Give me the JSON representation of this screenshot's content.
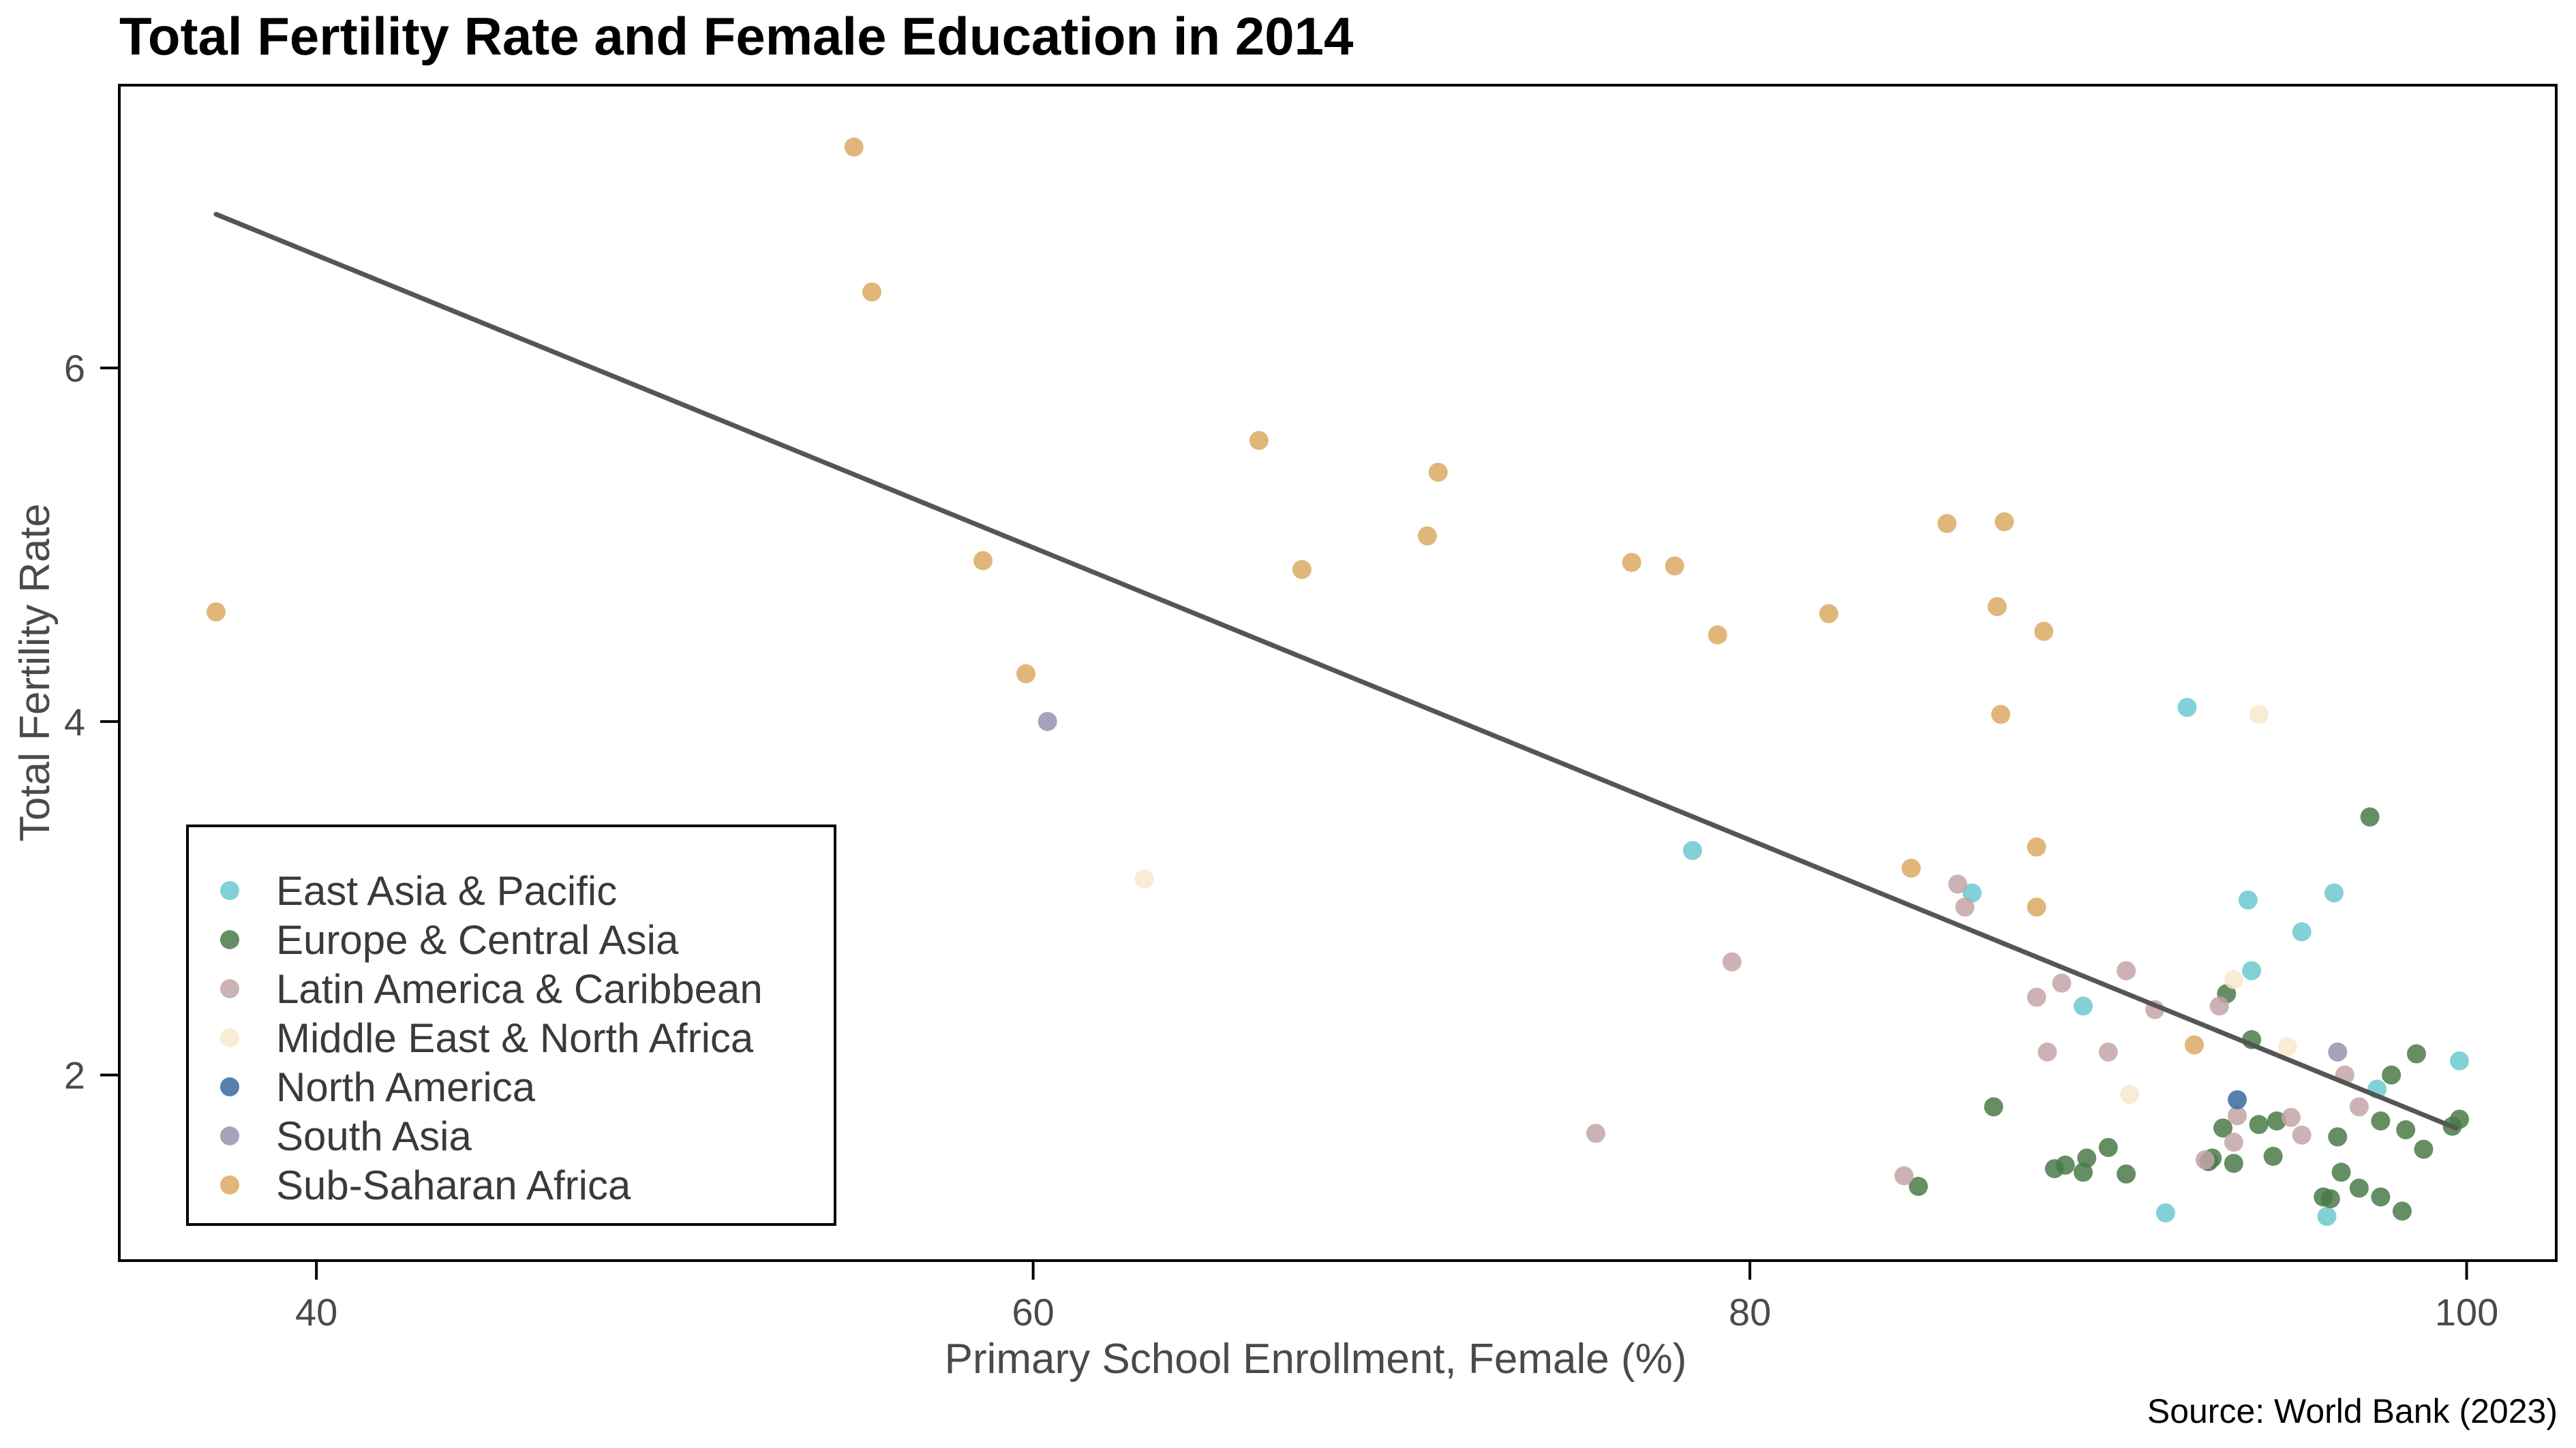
{
  "chart_data": {
    "type": "scatter",
    "title": "Total Fertility Rate and Female Education in 2014",
    "xlabel": "Primary School Enrollment, Female (%)",
    "ylabel": "Total Fertility Rate",
    "source": "Source: World Bank (2023)",
    "xlim": [
      34.5,
      102.5
    ],
    "ylim": [
      0.95,
      7.6
    ],
    "x_ticks": [
      40,
      60,
      80,
      100
    ],
    "y_ticks": [
      2,
      4,
      6
    ],
    "grid": false,
    "legend_position": "lower-left",
    "trendline": {
      "x": [
        37.2,
        99.7
      ],
      "y": [
        6.87,
        1.7
      ],
      "color": "#555555"
    },
    "series": [
      {
        "name": "East Asia & Pacific",
        "color": "#6cc9cf",
        "x": [
          78.4,
          86.2,
          89.3,
          91.6,
          92.2,
          93.9,
          94.0,
          95.4,
          96.1,
          96.3,
          97.5,
          99.8
        ],
        "y": [
          3.27,
          3.03,
          2.39,
          1.22,
          4.08,
          2.99,
          2.59,
          2.81,
          1.2,
          3.03,
          1.92,
          2.08
        ]
      },
      {
        "name": "Europe & Central Asia",
        "color": "#4a7a48",
        "x": [
          84.7,
          86.8,
          88.5,
          88.8,
          89.3,
          89.4,
          90.0,
          90.5,
          92.8,
          92.9,
          93.2,
          93.3,
          93.5,
          94.0,
          94.2,
          94.6,
          94.7,
          96.0,
          96.2,
          96.4,
          96.5,
          97.0,
          97.3,
          97.6,
          97.6,
          97.9,
          98.2,
          98.3,
          98.6,
          98.8,
          99.6,
          99.8
        ],
        "y": [
          1.37,
          1.82,
          1.47,
          1.49,
          1.45,
          1.53,
          1.59,
          1.44,
          1.51,
          1.53,
          1.7,
          2.46,
          1.5,
          2.2,
          1.72,
          1.54,
          1.74,
          1.31,
          1.3,
          1.65,
          1.45,
          1.36,
          3.46,
          1.74,
          1.31,
          2.0,
          1.23,
          1.69,
          2.12,
          1.58,
          1.71,
          1.75
        ]
      },
      {
        "name": "Latin America & Caribbean",
        "color": "#c4a4a8",
        "x": [
          75.7,
          79.5,
          84.3,
          85.8,
          86.0,
          88.0,
          88.3,
          88.7,
          90.0,
          90.5,
          91.3,
          92.7,
          93.1,
          93.5,
          93.6,
          95.1,
          95.4,
          96.6,
          97.0
        ],
        "y": [
          1.67,
          2.64,
          1.43,
          3.08,
          2.95,
          2.44,
          2.13,
          2.52,
          2.13,
          2.59,
          2.37,
          1.52,
          2.39,
          1.62,
          1.77,
          1.76,
          1.66,
          2.0,
          1.82
        ]
      },
      {
        "name": "Middle East & North Africa",
        "color": "#f8e8cc",
        "x": [
          63.1,
          90.6,
          93.5,
          94.2,
          95.0
        ],
        "y": [
          3.11,
          1.89,
          2.54,
          4.04,
          2.16
        ]
      },
      {
        "name": "North America",
        "color": "#3a6aa0",
        "x": [
          93.6
        ],
        "y": [
          1.86
        ]
      },
      {
        "name": "South Asia",
        "color": "#9a90b0",
        "x": [
          60.4,
          96.4
        ],
        "y": [
          4.0,
          2.13
        ]
      },
      {
        "name": "Sub-Saharan Africa",
        "color": "#dca964",
        "x": [
          37.2,
          55.0,
          55.5,
          58.6,
          59.8,
          66.3,
          67.5,
          71.0,
          71.3,
          76.7,
          77.9,
          79.1,
          82.2,
          84.5,
          85.5,
          86.9,
          87.0,
          87.1,
          88.0,
          88.0,
          88.2,
          92.4
        ],
        "y": [
          4.62,
          7.25,
          6.43,
          4.91,
          4.27,
          5.59,
          4.86,
          5.05,
          5.41,
          4.9,
          4.88,
          4.49,
          4.61,
          3.17,
          5.12,
          4.65,
          4.04,
          5.13,
          3.29,
          2.95,
          4.51,
          2.17
        ]
      }
    ]
  }
}
